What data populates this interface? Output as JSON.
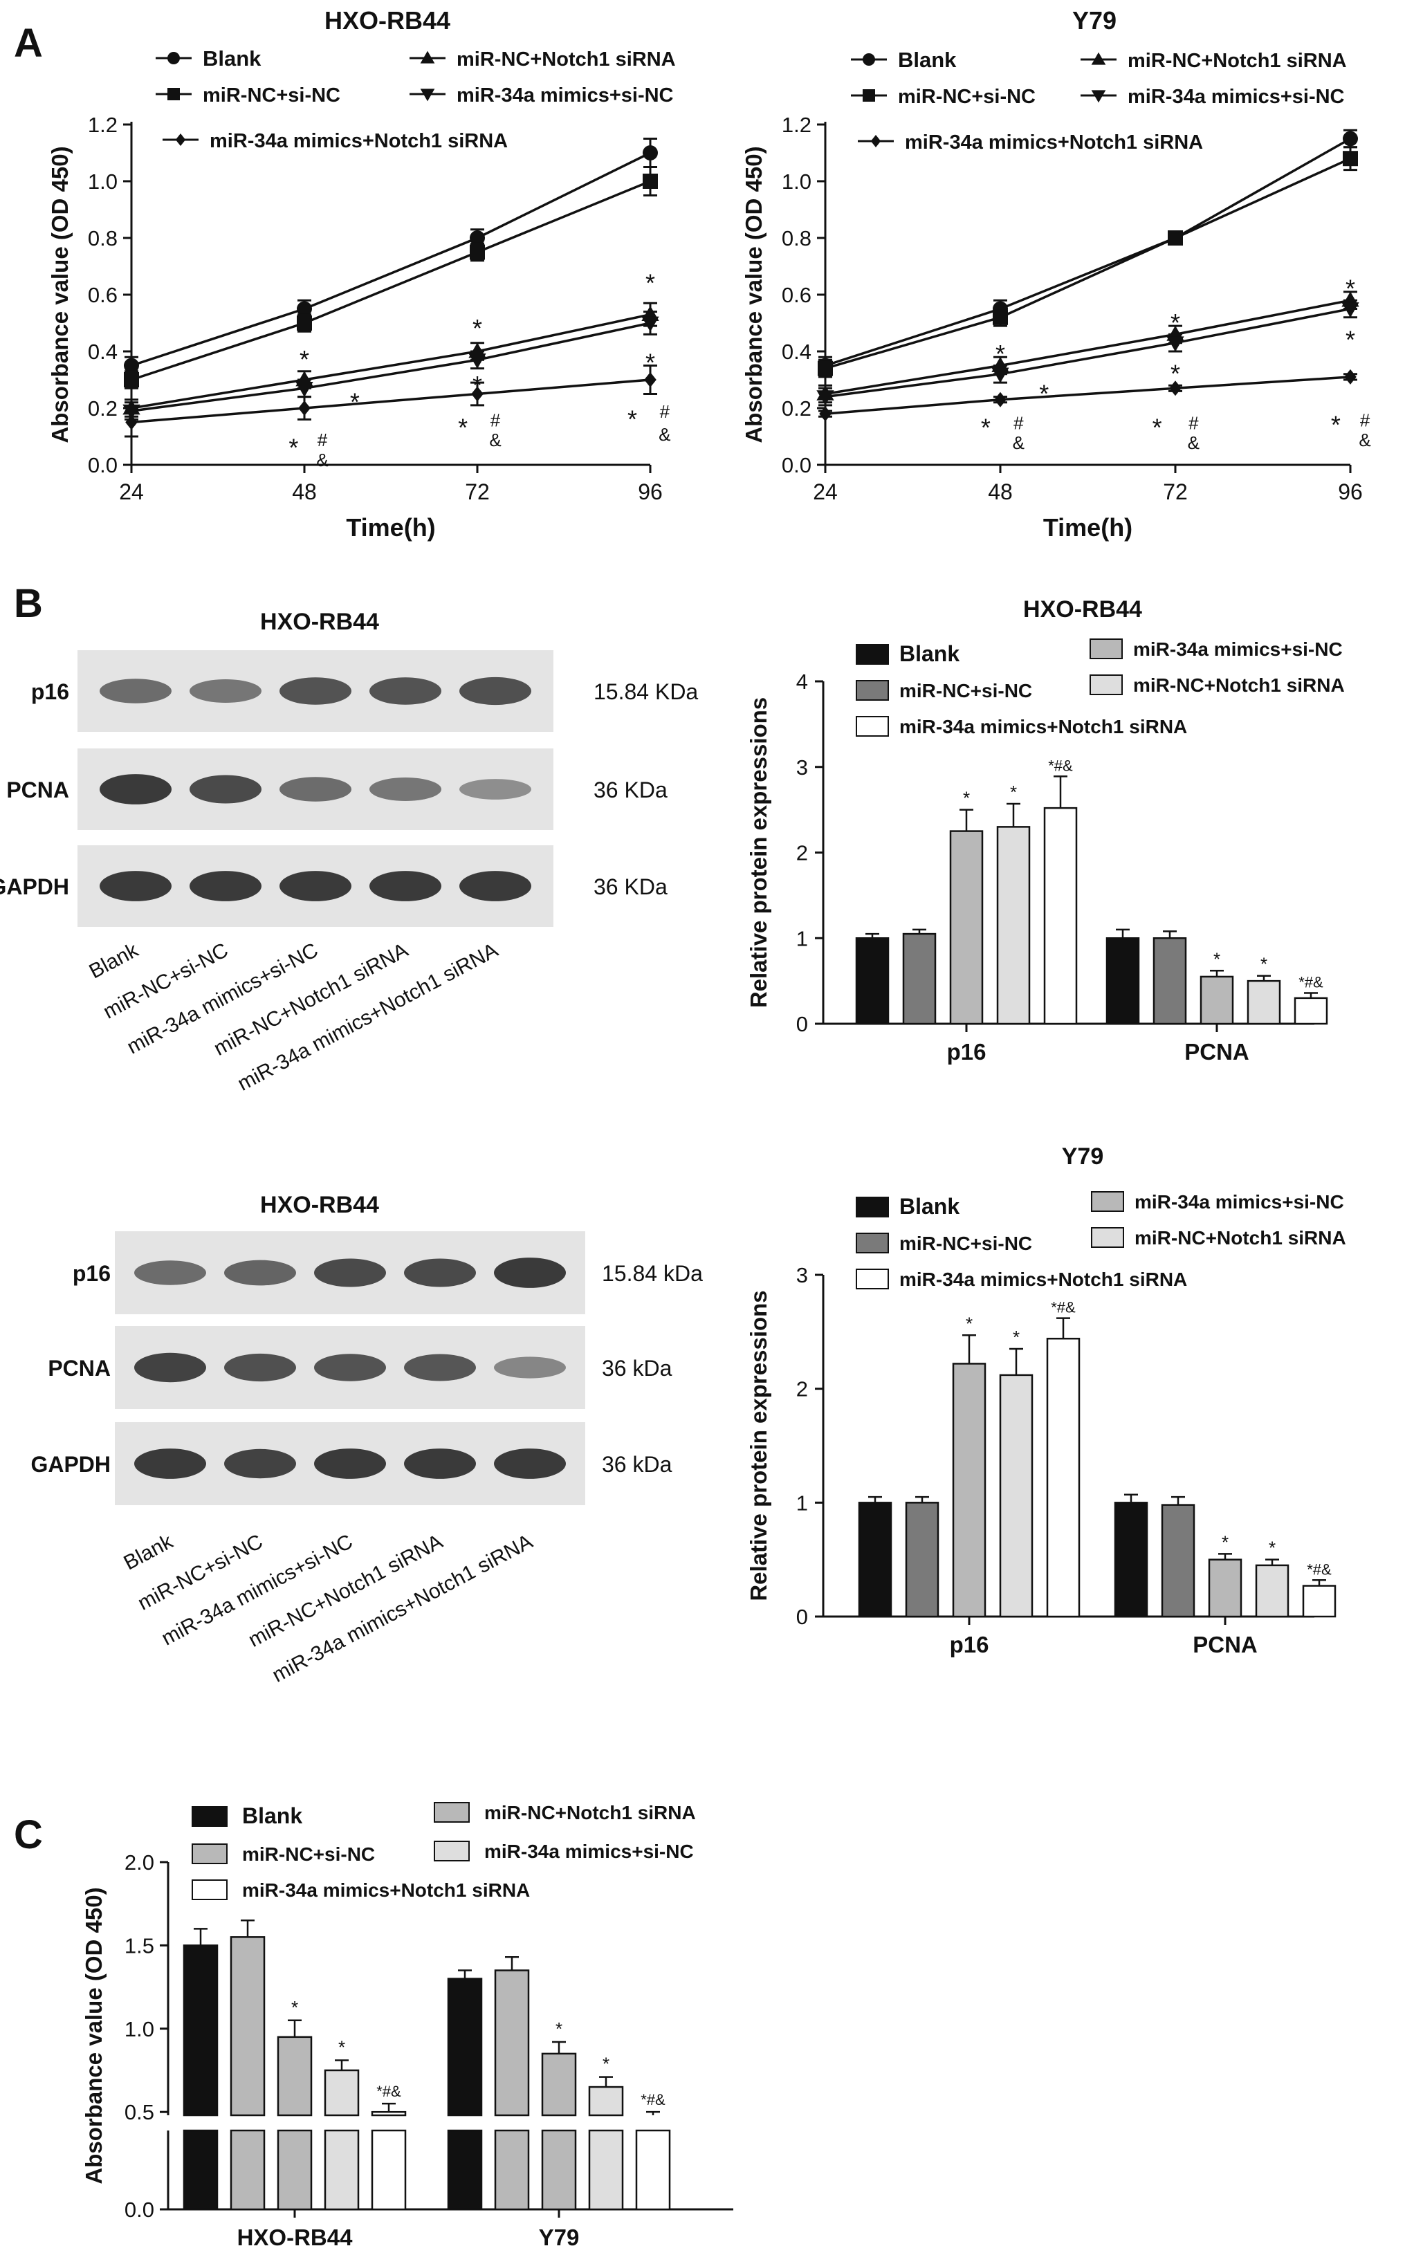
{
  "panel_letters": [
    "A",
    "B",
    "C"
  ],
  "colors": {
    "black": "#111111",
    "dark_gray": "#7a7a7a",
    "mid_gray": "#b8b8b8",
    "light_gray": "#dedede",
    "white": "#ffffff"
  },
  "blots": [
    {
      "title": "HXO-RB44",
      "rows": [
        {
          "label": "p16",
          "size": "15.84 KDa",
          "intensity": [
            0.55,
            0.5,
            0.7,
            0.7,
            0.72
          ]
        },
        {
          "label": "PCNA",
          "size": "36 KDa",
          "intensity": [
            0.85,
            0.75,
            0.55,
            0.5,
            0.35
          ]
        },
        {
          "label": "GAPDH",
          "size": "36 KDa",
          "intensity": [
            0.85,
            0.85,
            0.85,
            0.85,
            0.85
          ]
        }
      ],
      "lanes": [
        "Blank",
        "miR-NC+si-NC",
        "miR-34a mimics+si-NC",
        "miR-NC+Notch1 siRNA",
        "miR-34a mimics+Notch1 siRNA"
      ]
    },
    {
      "title": "HXO-RB44",
      "rows": [
        {
          "label": "p16",
          "size": "15.84 kDa",
          "intensity": [
            0.55,
            0.6,
            0.75,
            0.75,
            0.85
          ]
        },
        {
          "label": "PCNA",
          "size": "36  kDa",
          "intensity": [
            0.8,
            0.72,
            0.7,
            0.68,
            0.4
          ]
        },
        {
          "label": "GAPDH",
          "size": "36 kDa",
          "intensity": [
            0.85,
            0.8,
            0.85,
            0.85,
            0.85
          ]
        }
      ],
      "lanes": [
        "Blank",
        "miR-NC+si-NC",
        "miR-34a mimics+si-NC",
        "miR-NC+Notch1 siRNA",
        "miR-34a mimics+Notch1 siRNA"
      ]
    }
  ],
  "chart_data": [
    {
      "type": "line",
      "title": "HXO-RB44",
      "xlabel": "Time(h)",
      "ylabel": "Absorbance value (OD 450)",
      "x": [
        24,
        48,
        72,
        96
      ],
      "xlim": [
        24,
        96
      ],
      "ylim": [
        0,
        1.2
      ],
      "yticks": [
        "0.0",
        "0.2",
        "0.4",
        "0.6",
        "0.8",
        "1.0",
        "1.2"
      ],
      "legend": [
        "Blank",
        "miR-NC+Notch1 siRNA",
        "miR-NC+si-NC",
        "miR-34a mimics+si-NC",
        "miR-34a mimics+Notch1 siRNA"
      ],
      "series": [
        {
          "name": "Blank",
          "marker": "circle",
          "values": [
            0.35,
            0.55,
            0.8,
            1.1
          ],
          "err": [
            0.03,
            0.03,
            0.03,
            0.05
          ]
        },
        {
          "name": "miR-NC+si-NC",
          "marker": "square",
          "values": [
            0.3,
            0.5,
            0.75,
            1.0
          ],
          "err": [
            0.03,
            0.03,
            0.03,
            0.05
          ]
        },
        {
          "name": "miR-NC+Notch1 siRNA",
          "marker": "triangle-up",
          "values": [
            0.2,
            0.3,
            0.4,
            0.53
          ],
          "err": [
            0.03,
            0.03,
            0.03,
            0.04
          ]
        },
        {
          "name": "miR-34a mimics+si-NC",
          "marker": "triangle-down",
          "values": [
            0.19,
            0.27,
            0.37,
            0.5
          ],
          "err": [
            0.03,
            0.03,
            0.03,
            0.04
          ]
        },
        {
          "name": "miR-34a mimics+Notch1 siRNA",
          "marker": "diamond",
          "values": [
            0.15,
            0.2,
            0.25,
            0.3
          ],
          "err": [
            0.05,
            0.04,
            0.04,
            0.05
          ]
        }
      ],
      "annotations": [
        {
          "x": 48,
          "y": 0.38,
          "text": "*"
        },
        {
          "x": 55,
          "y": 0.23,
          "text": "*"
        },
        {
          "x": 46.5,
          "y": 0.07,
          "text": "*"
        },
        {
          "x": 50.5,
          "y": 0.09,
          "text": "#"
        },
        {
          "x": 50.5,
          "y": 0.02,
          "text": "&"
        },
        {
          "x": 72,
          "y": 0.49,
          "text": "*"
        },
        {
          "x": 72,
          "y": 0.29,
          "text": "*"
        },
        {
          "x": 70,
          "y": 0.14,
          "text": "*"
        },
        {
          "x": 74.5,
          "y": 0.16,
          "text": "#"
        },
        {
          "x": 74.5,
          "y": 0.09,
          "text": "&"
        },
        {
          "x": 96,
          "y": 0.65,
          "text": "*"
        },
        {
          "x": 96,
          "y": 0.37,
          "text": "*"
        },
        {
          "x": 93.5,
          "y": 0.17,
          "text": "*"
        },
        {
          "x": 98,
          "y": 0.19,
          "text": "#"
        },
        {
          "x": 98,
          "y": 0.11,
          "text": "&"
        }
      ]
    },
    {
      "type": "line",
      "title": "Y79",
      "xlabel": "Time(h)",
      "ylabel": "Absorbance value (OD 450)",
      "x": [
        24,
        48,
        72,
        96
      ],
      "xlim": [
        24,
        96
      ],
      "ylim": [
        0,
        1.2
      ],
      "yticks": [
        "0.0",
        "0.2",
        "0.4",
        "0.6",
        "0.8",
        "1.0",
        "1.2"
      ],
      "legend": [
        "Blank",
        "miR-NC+Notch1 siRNA",
        "miR-NC+si-NC",
        "miR-34a mimics+si-NC",
        "miR-34a mimics+Notch1 siRNA"
      ],
      "series": [
        {
          "name": "Blank",
          "marker": "circle",
          "values": [
            0.35,
            0.55,
            0.8,
            1.15
          ],
          "err": [
            0.03,
            0.03,
            0.02,
            0.03
          ]
        },
        {
          "name": "miR-NC+si-NC",
          "marker": "square",
          "values": [
            0.34,
            0.52,
            0.8,
            1.08
          ],
          "err": [
            0.03,
            0.03,
            0.02,
            0.04
          ]
        },
        {
          "name": "miR-NC+Notch1 siRNA",
          "marker": "triangle-up",
          "values": [
            0.25,
            0.35,
            0.46,
            0.58
          ],
          "err": [
            0.03,
            0.03,
            0.03,
            0.03
          ]
        },
        {
          "name": "miR-34a mimics+si-NC",
          "marker": "triangle-down",
          "values": [
            0.24,
            0.32,
            0.43,
            0.55
          ],
          "err": [
            0.03,
            0.03,
            0.03,
            0.03
          ]
        },
        {
          "name": "miR-34a mimics+Notch1 siRNA",
          "marker": "diamond",
          "values": [
            0.18,
            0.23,
            0.27,
            0.31
          ],
          "err": [
            0.01,
            0.01,
            0.01,
            0.01
          ]
        }
      ],
      "annotations": [
        {
          "x": 48,
          "y": 0.4,
          "text": "*"
        },
        {
          "x": 54,
          "y": 0.26,
          "text": "*"
        },
        {
          "x": 46,
          "y": 0.14,
          "text": "*"
        },
        {
          "x": 50.5,
          "y": 0.15,
          "text": "#"
        },
        {
          "x": 50.5,
          "y": 0.08,
          "text": "&"
        },
        {
          "x": 72,
          "y": 0.51,
          "text": "*"
        },
        {
          "x": 72,
          "y": 0.33,
          "text": "*"
        },
        {
          "x": 69.5,
          "y": 0.14,
          "text": "*"
        },
        {
          "x": 74.5,
          "y": 0.15,
          "text": "#"
        },
        {
          "x": 74.5,
          "y": 0.08,
          "text": "&"
        },
        {
          "x": 96,
          "y": 0.63,
          "text": "*"
        },
        {
          "x": 96,
          "y": 0.45,
          "text": "*"
        },
        {
          "x": 94,
          "y": 0.15,
          "text": "*"
        },
        {
          "x": 98,
          "y": 0.16,
          "text": "#"
        },
        {
          "x": 98,
          "y": 0.09,
          "text": "&"
        }
      ]
    },
    {
      "type": "bar",
      "title": "HXO-RB44",
      "ylabel": "Relative protein expressions",
      "categories": [
        "p16",
        "PCNA"
      ],
      "ylim": [
        0,
        4
      ],
      "yticks": [
        "0",
        "1",
        "2",
        "3",
        "4"
      ],
      "legend": [
        "Blank",
        "miR-34a mimics+si-NC",
        "miR-NC+si-NC",
        "miR-NC+Notch1 siRNA",
        "miR-34a mimics+Notch1 siRNA"
      ],
      "series": [
        {
          "name": "Blank",
          "color": "#111111",
          "values": [
            1.0,
            1.0
          ],
          "err": [
            0.05,
            0.1
          ],
          "marks": [
            "",
            ""
          ]
        },
        {
          "name": "miR-NC+si-NC",
          "color": "#7a7a7a",
          "values": [
            1.05,
            1.0
          ],
          "err": [
            0.05,
            0.08
          ],
          "marks": [
            "",
            ""
          ]
        },
        {
          "name": "miR-34a mimics+si-NC",
          "color": "#b8b8b8",
          "values": [
            2.25,
            0.55
          ],
          "err": [
            0.25,
            0.07
          ],
          "marks": [
            "*",
            "*"
          ]
        },
        {
          "name": "miR-NC+Notch1 siRNA",
          "color": "#dedede",
          "values": [
            2.3,
            0.5
          ],
          "err": [
            0.27,
            0.06
          ],
          "marks": [
            "*",
            "*"
          ]
        },
        {
          "name": "miR-34a mimics+Notch1 siRNA",
          "color": "#ffffff",
          "values": [
            2.52,
            0.3
          ],
          "err": [
            0.37,
            0.06
          ],
          "marks": [
            "*#&",
            "*#&"
          ]
        }
      ]
    },
    {
      "type": "bar",
      "title": "Y79",
      "ylabel": "Relative protein expressions",
      "categories": [
        "p16",
        "PCNA"
      ],
      "ylim": [
        0,
        3
      ],
      "yticks": [
        "0",
        "1",
        "2",
        "3"
      ],
      "legend": [
        "Blank",
        "miR-34a mimics+si-NC",
        "miR-NC+si-NC",
        "miR-NC+Notch1 siRNA",
        "miR-34a mimics+Notch1 siRNA"
      ],
      "series": [
        {
          "name": "Blank",
          "color": "#111111",
          "values": [
            1.0,
            1.0
          ],
          "err": [
            0.05,
            0.07
          ],
          "marks": [
            "",
            ""
          ]
        },
        {
          "name": "miR-NC+si-NC",
          "color": "#7a7a7a",
          "values": [
            1.0,
            0.98
          ],
          "err": [
            0.05,
            0.07
          ],
          "marks": [
            "",
            ""
          ]
        },
        {
          "name": "miR-34a mimics+si-NC",
          "color": "#b8b8b8",
          "values": [
            2.22,
            0.5
          ],
          "err": [
            0.25,
            0.05
          ],
          "marks": [
            "*",
            "*"
          ]
        },
        {
          "name": "miR-NC+Notch1 siRNA",
          "color": "#dedede",
          "values": [
            2.12,
            0.45
          ],
          "err": [
            0.23,
            0.05
          ],
          "marks": [
            "*",
            "*"
          ]
        },
        {
          "name": "miR-34a mimics+Notch1 siRNA",
          "color": "#ffffff",
          "values": [
            2.44,
            0.27
          ],
          "err": [
            0.18,
            0.05
          ],
          "marks": [
            "*#&",
            "*#&"
          ]
        }
      ]
    },
    {
      "type": "bar",
      "title": "",
      "ylabel": "Absorbance value (OD 450)",
      "categories": [
        "HXO-RB44",
        "Y79"
      ],
      "axis_break": [
        0.4,
        0.48
      ],
      "yticks": [
        "0.0",
        "0.5",
        "1.0",
        "1.5",
        "2.0"
      ],
      "legend": [
        "Blank",
        "miR-NC+Notch1 siRNA",
        "miR-NC+si-NC",
        "miR-34a mimics+si-NC",
        "miR-34a mimics+Notch1 siRNA"
      ],
      "series": [
        {
          "name": "Blank",
          "color": "#111111",
          "values": [
            1.5,
            1.3
          ],
          "err": [
            0.1,
            0.05
          ],
          "marks": [
            "",
            ""
          ]
        },
        {
          "name": "miR-NC+si-NC",
          "color": "#b8b8b8",
          "values": [
            1.55,
            1.35
          ],
          "err": [
            0.1,
            0.08
          ],
          "marks": [
            "",
            ""
          ]
        },
        {
          "name": "miR-NC+Notch1 siRNA",
          "color": "#b8b8b8",
          "values": [
            0.95,
            0.85
          ],
          "err": [
            0.1,
            0.07
          ],
          "marks": [
            "*",
            "*"
          ]
        },
        {
          "name": "miR-34a mimics+si-NC",
          "color": "#dedede",
          "values": [
            0.75,
            0.65
          ],
          "err": [
            0.06,
            0.06
          ],
          "marks": [
            "*",
            "*"
          ]
        },
        {
          "name": "miR-34a mimics+Notch1 siRNA",
          "color": "#ffffff",
          "values": [
            0.5,
            0.4
          ],
          "err": [
            0.05,
            0.1
          ],
          "marks": [
            "*#&",
            "*#&"
          ]
        }
      ]
    }
  ]
}
